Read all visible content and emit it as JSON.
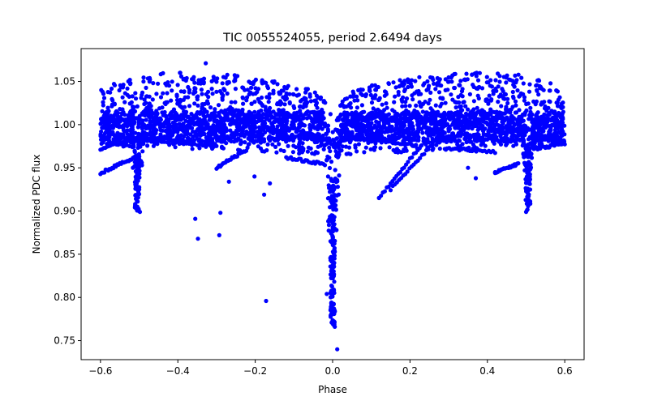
{
  "chart_data": {
    "type": "scatter",
    "title": "TIC 0055524055, period 2.6494 days",
    "xlabel": "Phase",
    "ylabel": "Normalized PDC flux",
    "xlim": [
      -0.65,
      0.65
    ],
    "ylim": [
      0.728,
      1.088
    ],
    "xticks": [
      -0.6,
      -0.4,
      -0.2,
      0.0,
      0.2,
      0.4,
      0.6
    ],
    "xtick_labels": [
      "−0.6",
      "−0.4",
      "−0.2",
      "0.0",
      "0.2",
      "0.4",
      "0.6"
    ],
    "yticks": [
      0.75,
      0.8,
      0.85,
      0.9,
      0.95,
      1.0,
      1.05
    ],
    "ytick_labels": [
      "0.75",
      "0.80",
      "0.85",
      "0.90",
      "0.95",
      "1.00",
      "1.05"
    ],
    "grid": false,
    "series": [
      {
        "name": "flux",
        "color": "#0000ff",
        "description": "phase-folded light curve, dense band 0.97-1.06 with primary eclipse at phase 0.0 (min ~0.74) and secondary dips near phase ±0.5 (min ~0.90)",
        "outliers": [
          [
            -0.328,
            1.071
          ],
          [
            -0.355,
            0.891
          ],
          [
            -0.348,
            0.868
          ],
          [
            -0.29,
            0.898
          ],
          [
            -0.293,
            0.872
          ],
          [
            -0.172,
            0.796
          ],
          [
            -0.177,
            0.919
          ],
          [
            -0.162,
            0.932
          ],
          [
            -0.015,
            0.804
          ],
          [
            0.012,
            0.74
          ],
          [
            0.003,
            0.768
          ],
          [
            -0.268,
            0.934
          ],
          [
            -0.202,
            0.94
          ],
          [
            0.12,
            0.915
          ],
          [
            0.35,
            0.95
          ],
          [
            0.37,
            0.938
          ],
          [
            0.42,
            0.944
          ],
          [
            0.5,
            0.899
          ],
          [
            -0.498,
            0.899
          ]
        ]
      }
    ]
  }
}
